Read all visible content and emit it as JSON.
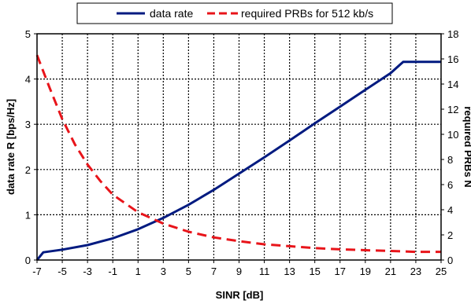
{
  "chart_data": {
    "type": "line",
    "title": "",
    "xlabel": "SINR [dB]",
    "ylabel": "data rate R [bps/Hz]",
    "y2label": "required PRBs N",
    "xlim": [
      -7,
      25
    ],
    "ylim": [
      0,
      5
    ],
    "y2lim": [
      0,
      18
    ],
    "x_ticks": [
      -7,
      -5,
      -3,
      -1,
      1,
      3,
      5,
      7,
      9,
      11,
      13,
      15,
      17,
      19,
      21,
      23,
      25
    ],
    "y_ticks": [
      0,
      1,
      2,
      3,
      4,
      5
    ],
    "y2_ticks": [
      0,
      2,
      4,
      6,
      8,
      10,
      12,
      14,
      16,
      18
    ],
    "grid": true,
    "legend_position": "top",
    "series": [
      {
        "name": "data rate",
        "axis": "left",
        "color": "#001a80",
        "style": "solid",
        "x": [
          -7,
          -6.5,
          -5,
          -3,
          -1,
          1,
          3,
          5,
          7,
          9,
          11,
          13,
          15,
          17,
          19,
          21,
          22,
          23,
          25
        ],
        "y": [
          0.0,
          0.17,
          0.23,
          0.33,
          0.48,
          0.68,
          0.93,
          1.22,
          1.55,
          1.91,
          2.27,
          2.64,
          3.02,
          3.39,
          3.76,
          4.13,
          4.38,
          4.38,
          4.38
        ]
      },
      {
        "name": "required PRBs for 512 kb/s",
        "axis": "right",
        "color": "#e8141a",
        "style": "dashed",
        "x": [
          -7,
          -6,
          -5,
          -4,
          -3,
          -2,
          -1,
          0,
          1,
          3,
          5,
          7,
          9,
          11,
          13,
          15,
          17,
          19,
          21,
          23,
          25
        ],
        "y": [
          16.3,
          13.7,
          11.2,
          9.2,
          7.6,
          6.3,
          5.2,
          4.5,
          3.8,
          2.9,
          2.25,
          1.8,
          1.5,
          1.25,
          1.1,
          0.95,
          0.85,
          0.78,
          0.72,
          0.65,
          0.65
        ]
      }
    ]
  }
}
